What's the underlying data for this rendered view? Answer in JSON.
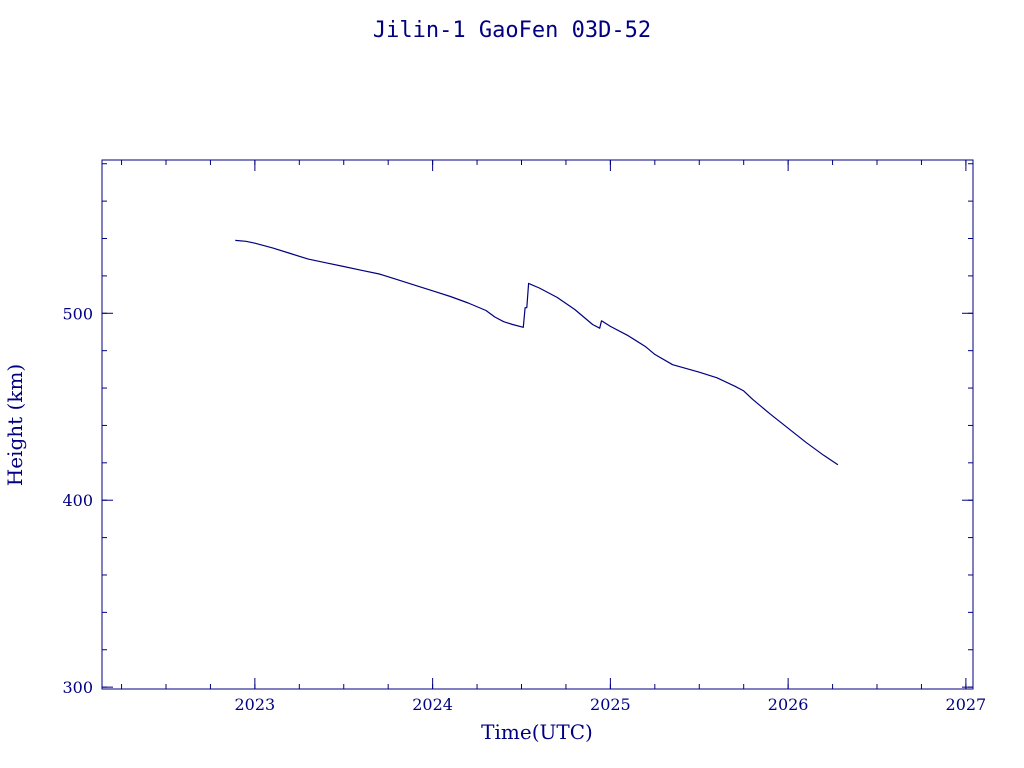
{
  "chart_data": {
    "type": "line",
    "title": "Jilin-1 GaoFen 03D-52",
    "xlabel": "Time(UTC)",
    "ylabel": "Height (km)",
    "xlim": [
      2022.14,
      2027.04
    ],
    "ylim": [
      299,
      582
    ],
    "x_ticks": [
      2023,
      2024,
      2025,
      2026,
      2027
    ],
    "y_ticks": [
      300,
      400,
      500
    ],
    "x_minor_step": 0.25,
    "y_minor_step": 20,
    "grid": false,
    "legend": "none",
    "color": "#000080",
    "series": [
      {
        "x": [
          2022.89,
          2022.95,
          2023.0,
          2023.1,
          2023.2,
          2023.3,
          2023.4,
          2023.5,
          2023.6,
          2023.7,
          2023.8,
          2023.9,
          2024.0,
          2024.1,
          2024.2,
          2024.3,
          2024.35,
          2024.4,
          2024.45,
          2024.51,
          2024.52,
          2024.53,
          2024.54,
          2024.6,
          2024.7,
          2024.8,
          2024.85,
          2024.9,
          2024.94,
          2024.95,
          2025.0,
          2025.1,
          2025.2,
          2025.25,
          2025.35,
          2025.5,
          2025.6,
          2025.7,
          2025.75,
          2025.8,
          2025.9,
          2026.0,
          2026.1,
          2026.2,
          2026.28
        ],
        "y": [
          539,
          538.5,
          537.5,
          535,
          532,
          529,
          527,
          525,
          523,
          521,
          518,
          515,
          512,
          509,
          505.5,
          501.5,
          498,
          495.5,
          494,
          492.5,
          503,
          503,
          516,
          513.5,
          508.5,
          502,
          498,
          494,
          492,
          496,
          493,
          488,
          482,
          478,
          472.5,
          468.5,
          465.5,
          461,
          458.5,
          454,
          446,
          438.5,
          431,
          424,
          419
        ]
      }
    ]
  }
}
